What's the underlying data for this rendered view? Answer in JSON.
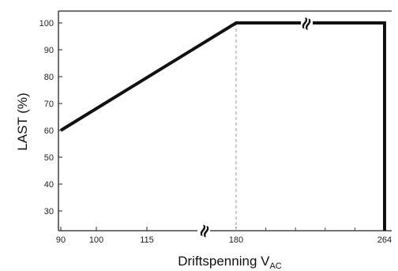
{
  "chart_data": {
    "type": "line",
    "title": "",
    "xlabel": "Driftspenning V",
    "xlabel_subscript": "AC",
    "ylabel": "LAST (%)",
    "x_ticks": [
      "90",
      "100",
      "115",
      "180",
      "264"
    ],
    "y_ticks": [
      "30",
      "40",
      "50",
      "60",
      "70",
      "80",
      "90",
      "100"
    ],
    "ylim": [
      23,
      108
    ],
    "x_axis_break_symbol": "≈",
    "series": [
      {
        "points": [
          {
            "x": 90,
            "y": 60
          },
          {
            "x": 180,
            "y": 100
          },
          {
            "x": 264,
            "y": 100
          },
          {
            "x": 264,
            "y": 23
          }
        ]
      }
    ],
    "reference_line": {
      "x": 180,
      "style": "dashed"
    },
    "grid": false,
    "legend": "none"
  }
}
